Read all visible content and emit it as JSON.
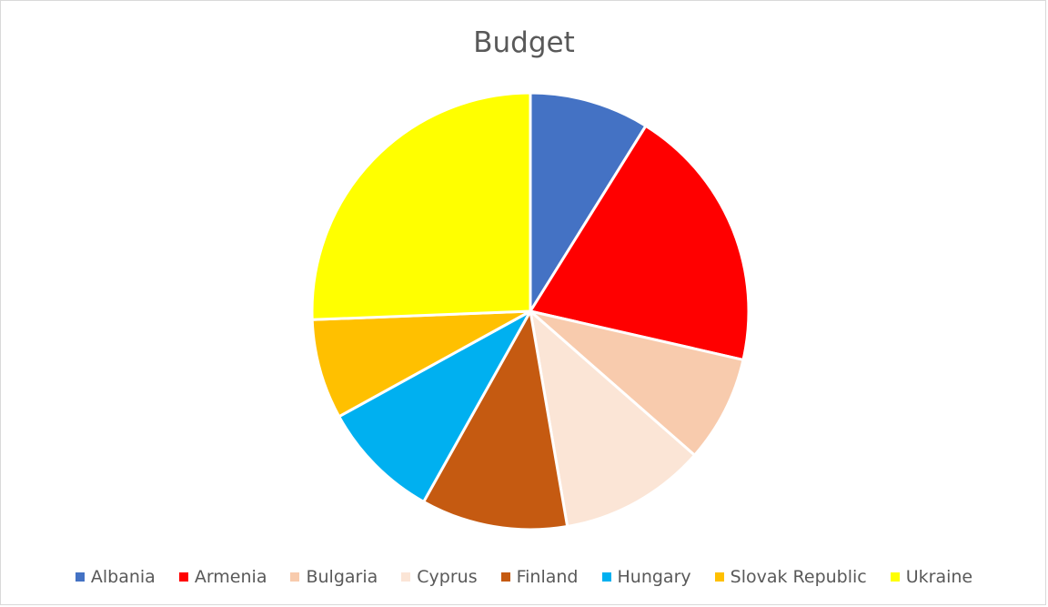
{
  "chart_data": {
    "type": "pie",
    "title": "Budget",
    "categories": [
      "Albania",
      "Armenia",
      "Bulgaria",
      "Cyprus",
      "Finland",
      "Hungary",
      "Slovak Republic",
      "Ukraine"
    ],
    "values": [
      9,
      20,
      8,
      11,
      11,
      9,
      7.5,
      26
    ],
    "colors": [
      "#4472C4",
      "#FF0000",
      "#F8CBAD",
      "#FBE5D6",
      "#C55A11",
      "#00B0F0",
      "#FFC000",
      "#FFFF00"
    ],
    "start_angle_deg": 0,
    "direction": "clockwise",
    "legend_position": "bottom",
    "slice_border_color": "#FFFFFF"
  }
}
